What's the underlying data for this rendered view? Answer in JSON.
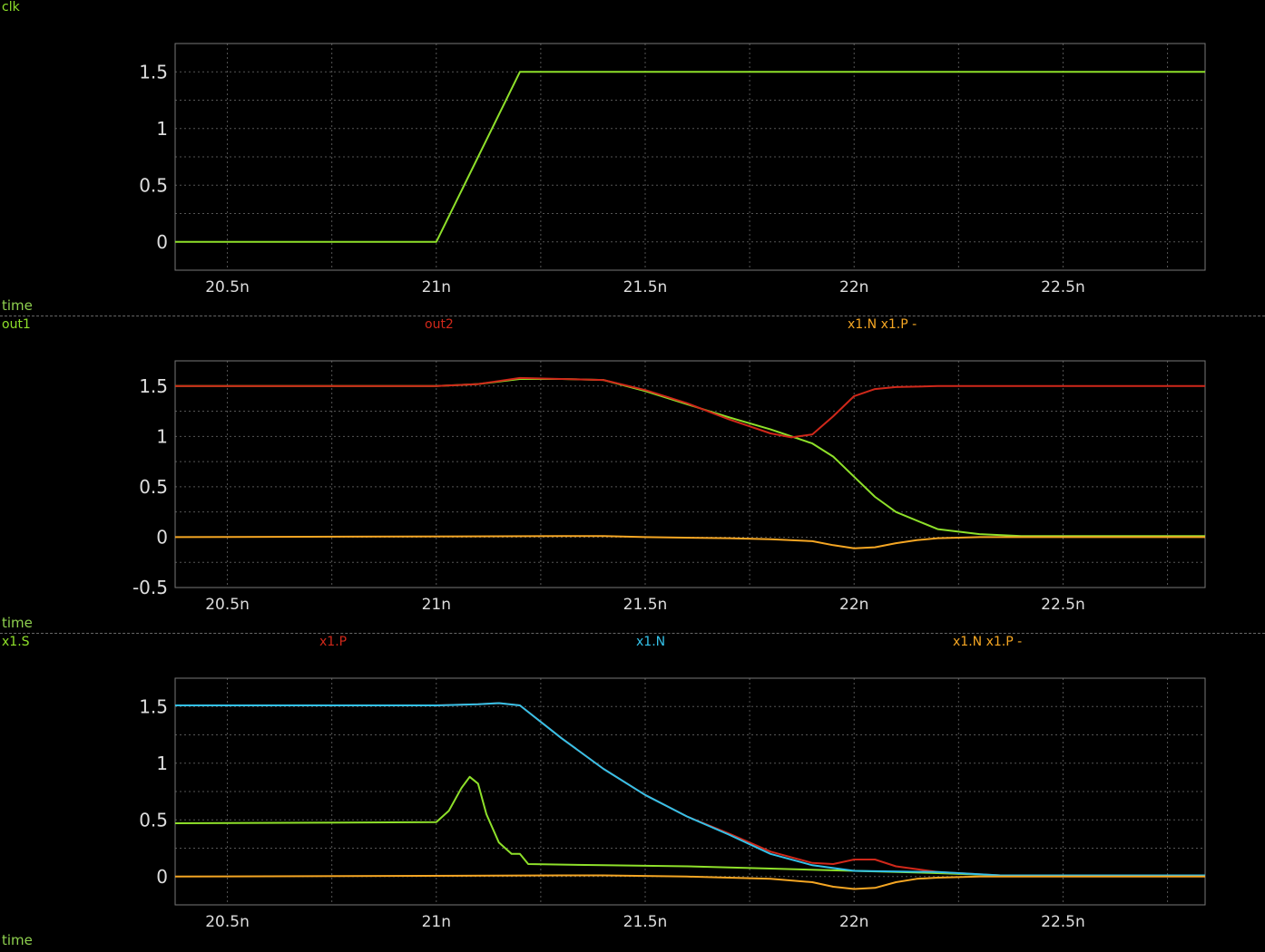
{
  "colors": {
    "green": "#8ee02a",
    "red": "#d0281a",
    "blue": "#33c1e8",
    "orange": "#f5a623",
    "grid": "#555555",
    "frame": "#777777",
    "tick": "#dddddd"
  },
  "x_axis_label": "time",
  "chart_data": [
    {
      "type": "line",
      "labels": [
        {
          "text": "clk",
          "color": "#8ee02a"
        }
      ],
      "xlabel": "time",
      "xlim": [
        2.0375e-08,
        2.284e-08
      ],
      "ylim": [
        -0.25,
        1.75
      ],
      "x_ticks": [
        {
          "v": 2.05e-08,
          "label": "20.5n"
        },
        {
          "v": 2.1e-08,
          "label": "21n"
        },
        {
          "v": 2.15e-08,
          "label": "21.5n"
        },
        {
          "v": 2.2e-08,
          "label": "22n"
        },
        {
          "v": 2.25e-08,
          "label": "22.5n"
        }
      ],
      "y_ticks": [
        {
          "v": 0,
          "label": "0"
        },
        {
          "v": 0.5,
          "label": "0.5"
        },
        {
          "v": 1,
          "label": "1"
        },
        {
          "v": 1.5,
          "label": "1.5"
        }
      ],
      "series": [
        {
          "name": "clk",
          "color": "#8ee02a",
          "x": [
            20.375,
            21.0,
            21.2,
            22.84
          ],
          "y": [
            0,
            0,
            1.5,
            1.5
          ]
        }
      ]
    },
    {
      "type": "line",
      "labels": [
        {
          "text": "out1",
          "color": "#8ee02a"
        },
        {
          "text": "out2",
          "color": "#d0281a"
        },
        {
          "text": "x1.N x1.P -",
          "color": "#f5a623"
        }
      ],
      "xlabel": "time",
      "xlim": [
        2.0375e-08,
        2.284e-08
      ],
      "ylim": [
        -0.5,
        1.75
      ],
      "x_ticks": [
        {
          "v": 2.05e-08,
          "label": "20.5n"
        },
        {
          "v": 2.1e-08,
          "label": "21n"
        },
        {
          "v": 2.15e-08,
          "label": "21.5n"
        },
        {
          "v": 2.2e-08,
          "label": "22n"
        },
        {
          "v": 2.25e-08,
          "label": "22.5n"
        }
      ],
      "y_ticks": [
        {
          "v": -0.5,
          "label": "-0.5"
        },
        {
          "v": 0,
          "label": "0"
        },
        {
          "v": 0.5,
          "label": "0.5"
        },
        {
          "v": 1,
          "label": "1"
        },
        {
          "v": 1.5,
          "label": "1.5"
        }
      ],
      "series": [
        {
          "name": "out1",
          "color": "#8ee02a",
          "x": [
            20.375,
            21.0,
            21.1,
            21.2,
            21.3,
            21.4,
            21.5,
            21.6,
            21.7,
            21.8,
            21.9,
            21.95,
            22.0,
            22.05,
            22.1,
            22.2,
            22.3,
            22.4,
            22.84
          ],
          "y": [
            1.5,
            1.5,
            1.52,
            1.57,
            1.57,
            1.56,
            1.45,
            1.32,
            1.19,
            1.07,
            0.93,
            0.8,
            0.6,
            0.4,
            0.25,
            0.08,
            0.03,
            0.01,
            0.01
          ]
        },
        {
          "name": "out2",
          "color": "#d0281a",
          "x": [
            20.375,
            21.0,
            21.1,
            21.2,
            21.3,
            21.4,
            21.5,
            21.6,
            21.7,
            21.8,
            21.85,
            21.9,
            21.95,
            22.0,
            22.05,
            22.1,
            22.2,
            22.84
          ],
          "y": [
            1.5,
            1.5,
            1.52,
            1.58,
            1.57,
            1.56,
            1.46,
            1.33,
            1.17,
            1.03,
            0.99,
            1.02,
            1.2,
            1.4,
            1.47,
            1.49,
            1.5,
            1.5
          ]
        },
        {
          "name": "x1.N x1.P -",
          "color": "#f5a623",
          "x": [
            20.375,
            21.3,
            21.4,
            21.5,
            21.7,
            21.8,
            21.9,
            21.95,
            22.0,
            22.05,
            22.1,
            22.15,
            22.2,
            22.3,
            22.84
          ],
          "y": [
            0,
            0.01,
            0.01,
            0.0,
            -0.01,
            -0.02,
            -0.04,
            -0.08,
            -0.11,
            -0.1,
            -0.06,
            -0.03,
            -0.01,
            0,
            0
          ]
        }
      ]
    },
    {
      "type": "line",
      "labels": [
        {
          "text": "x1.S",
          "color": "#8ee02a"
        },
        {
          "text": "x1.P",
          "color": "#d0281a"
        },
        {
          "text": "x1.N",
          "color": "#33c1e8"
        },
        {
          "text": "x1.N x1.P -",
          "color": "#f5a623"
        }
      ],
      "xlabel": "time",
      "xlim": [
        2.0375e-08,
        2.284e-08
      ],
      "ylim": [
        -0.25,
        1.75
      ],
      "x_ticks": [
        {
          "v": 2.05e-08,
          "label": "20.5n"
        },
        {
          "v": 2.1e-08,
          "label": "21n"
        },
        {
          "v": 2.15e-08,
          "label": "21.5n"
        },
        {
          "v": 2.2e-08,
          "label": "22n"
        },
        {
          "v": 2.25e-08,
          "label": "22.5n"
        }
      ],
      "y_ticks": [
        {
          "v": 0,
          "label": "0"
        },
        {
          "v": 0.5,
          "label": "0.5"
        },
        {
          "v": 1,
          "label": "1"
        },
        {
          "v": 1.5,
          "label": "1.5"
        }
      ],
      "series": [
        {
          "name": "x1.S",
          "color": "#8ee02a",
          "x": [
            20.375,
            21.0,
            21.03,
            21.06,
            21.08,
            21.1,
            21.12,
            21.15,
            21.18,
            21.2,
            21.22,
            21.4,
            21.6,
            21.8,
            22.0,
            22.2,
            22.35,
            22.84
          ],
          "y": [
            0.47,
            0.48,
            0.58,
            0.78,
            0.88,
            0.82,
            0.55,
            0.3,
            0.2,
            0.2,
            0.11,
            0.1,
            0.09,
            0.07,
            0.05,
            0.03,
            0.01,
            0.01
          ]
        },
        {
          "name": "x1.P",
          "color": "#d0281a",
          "x": [
            20.375,
            21.0,
            21.1,
            21.15,
            21.2,
            21.3,
            21.4,
            21.5,
            21.6,
            21.7,
            21.8,
            21.9,
            21.95,
            22.0,
            22.05,
            22.1,
            22.2,
            22.35,
            22.84
          ],
          "y": [
            1.51,
            1.51,
            1.52,
            1.53,
            1.51,
            1.22,
            0.95,
            0.72,
            0.53,
            0.38,
            0.22,
            0.12,
            0.11,
            0.15,
            0.15,
            0.09,
            0.04,
            0.01,
            0.01
          ]
        },
        {
          "name": "x1.N",
          "color": "#33c1e8",
          "x": [
            20.375,
            21.0,
            21.1,
            21.15,
            21.2,
            21.3,
            21.4,
            21.5,
            21.6,
            21.7,
            21.8,
            21.9,
            22.0,
            22.2,
            22.35,
            22.84
          ],
          "y": [
            1.51,
            1.51,
            1.52,
            1.53,
            1.51,
            1.22,
            0.95,
            0.72,
            0.53,
            0.37,
            0.2,
            0.1,
            0.05,
            0.04,
            0.01,
            0.01
          ]
        },
        {
          "name": "x1.N x1.P -",
          "color": "#f5a623",
          "x": [
            20.375,
            21.3,
            21.4,
            21.6,
            21.8,
            21.9,
            21.95,
            22.0,
            22.05,
            22.1,
            22.15,
            22.2,
            22.3,
            22.84
          ],
          "y": [
            0,
            0.01,
            0.01,
            0.0,
            -0.02,
            -0.05,
            -0.09,
            -0.11,
            -0.1,
            -0.05,
            -0.02,
            -0.01,
            0,
            0
          ]
        }
      ]
    }
  ]
}
